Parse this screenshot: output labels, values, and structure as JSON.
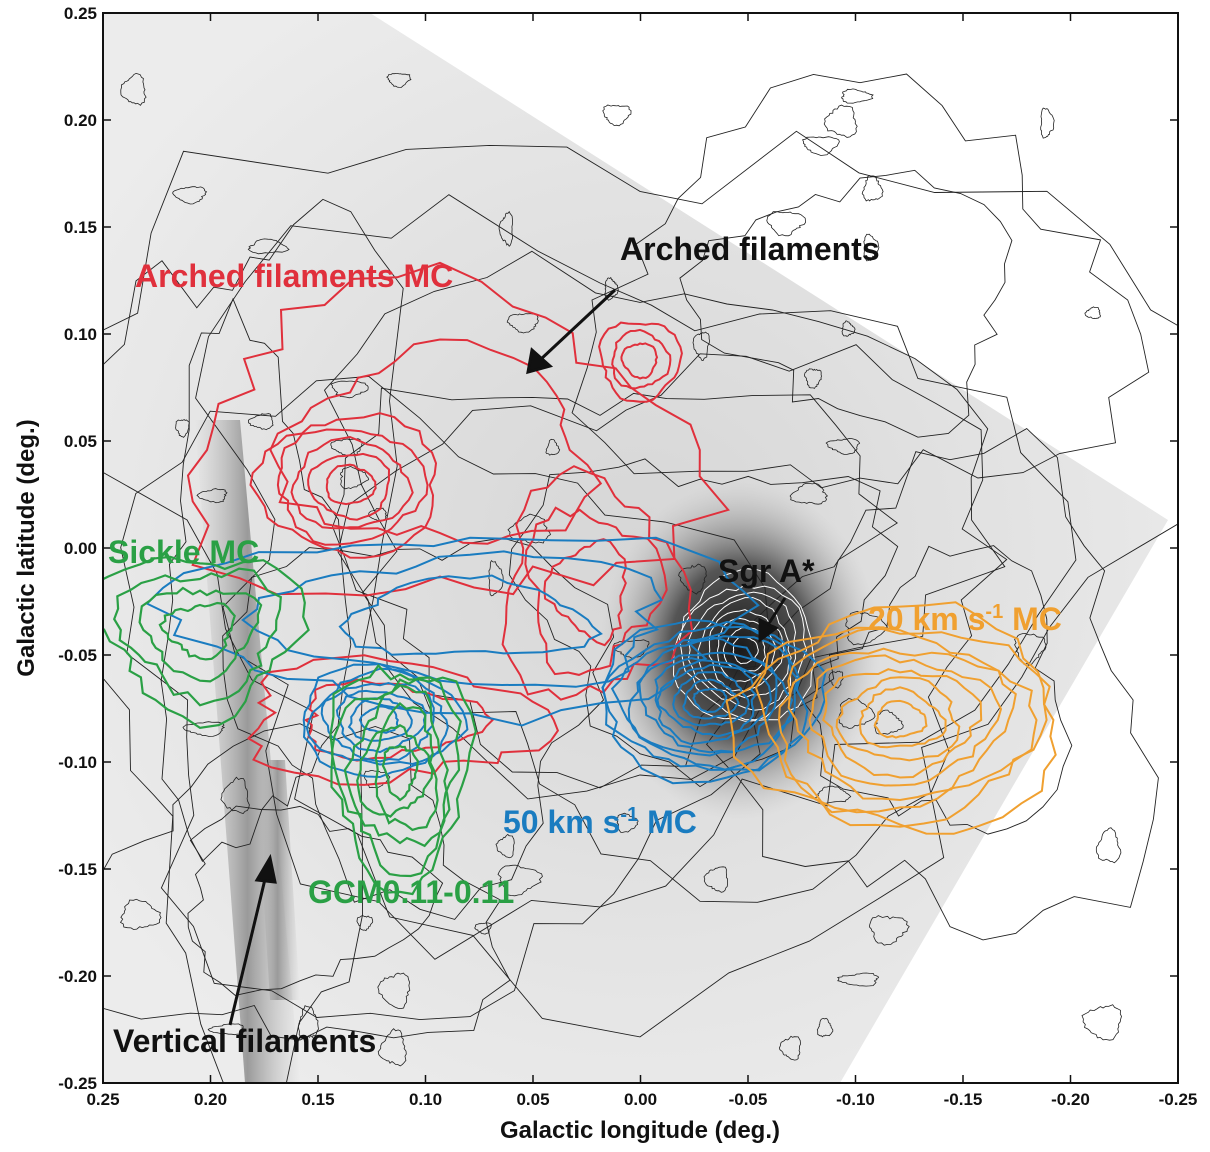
{
  "chart_data": {
    "type": "map",
    "xlabel": "Galactic longitude (deg.)",
    "ylabel": "Galactic latitude (deg.)",
    "xlim": [
      0.25,
      -0.25
    ],
    "ylim": [
      -0.25,
      0.25
    ],
    "xticks": [
      0.25,
      {
        "value": 0.2,
        "label": "0.20"
      },
      0.15,
      {
        "value": 0.1,
        "label": "0.10"
      },
      0.05,
      {
        "value": 0,
        "label": "0.00"
      },
      -0.05,
      {
        "value": -0.1,
        "label": "-0.10"
      },
      -0.15,
      {
        "value": -0.2,
        "label": "-0.20"
      },
      -0.25
    ],
    "yticks": [
      -0.25,
      {
        "value": -0.2,
        "label": "-0.20"
      },
      -0.15,
      {
        "value": -0.1,
        "label": "-0.10"
      },
      -0.05,
      {
        "value": 0,
        "label": "0.00"
      },
      0.05,
      {
        "value": 0.1,
        "label": "0.10"
      },
      0.15,
      {
        "value": 0.2,
        "label": "0.20"
      },
      0.25
    ],
    "annotations": [
      {
        "parts": [
          "Arched filaments MC"
        ],
        "color": "#e0303c"
      },
      {
        "parts": [
          "Arched filaments"
        ],
        "color": "#111111"
      },
      {
        "parts": [
          "Sickle MC"
        ],
        "color": "#2aa045"
      },
      {
        "parts": [
          "Sgr A*"
        ],
        "color": "#111111"
      },
      {
        "parts": [
          "20 km s",
          "-1",
          " MC"
        ],
        "color": "#f0a030"
      },
      {
        "parts": [
          "50 km s",
          "-1",
          " MC"
        ],
        "color": "#1a7cc0"
      },
      {
        "parts": [
          "GCM0.11-0.11"
        ],
        "color": "#2aa045"
      },
      {
        "parts": [
          "Vertical filaments"
        ],
        "color": "#111111"
      }
    ]
  }
}
